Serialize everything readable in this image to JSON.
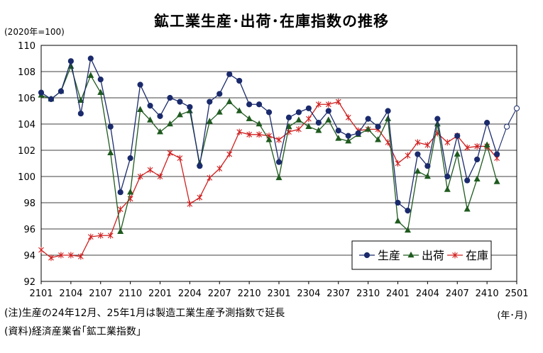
{
  "chart_data": {
    "type": "line",
    "title": "鉱工業生産･出荷･在庫指数の推移",
    "unit": "(2020年=100)",
    "x_unit": "(年･月)",
    "ylim": [
      92,
      110
    ],
    "y_ticks": [
      92,
      94,
      96,
      98,
      100,
      102,
      104,
      106,
      108,
      110
    ],
    "x_tick_labels": [
      "2101",
      "2104",
      "2107",
      "2110",
      "2201",
      "2204",
      "2207",
      "2210",
      "2301",
      "2304",
      "2307",
      "2310",
      "2401",
      "2404",
      "2407",
      "2410",
      "2501"
    ],
    "months": [
      "2101",
      "2102",
      "2103",
      "2104",
      "2105",
      "2106",
      "2107",
      "2108",
      "2109",
      "2110",
      "2111",
      "2112",
      "2201",
      "2202",
      "2203",
      "2204",
      "2205",
      "2206",
      "2207",
      "2208",
      "2209",
      "2210",
      "2211",
      "2212",
      "2301",
      "2302",
      "2303",
      "2304",
      "2305",
      "2306",
      "2307",
      "2308",
      "2309",
      "2310",
      "2311",
      "2312",
      "2401",
      "2402",
      "2403",
      "2404",
      "2405",
      "2406",
      "2407",
      "2408",
      "2409",
      "2410",
      "2411",
      "2412",
      "2501"
    ],
    "grid": "horizontal",
    "legend_position": "bottom-right",
    "series": [
      {
        "name": "生産",
        "color": "#1a2a6c",
        "marker": "circle",
        "values": [
          106.4,
          105.9,
          106.5,
          108.8,
          104.8,
          109.0,
          107.4,
          103.8,
          98.8,
          101.4,
          107.0,
          105.4,
          104.6,
          106.0,
          105.7,
          105.3,
          100.8,
          105.7,
          106.3,
          107.8,
          107.3,
          105.5,
          105.5,
          104.9,
          101.1,
          104.5,
          104.9,
          105.2,
          104.1,
          105.0,
          103.5,
          103.1,
          103.3,
          104.4,
          103.8,
          105.0,
          98.0,
          97.4,
          101.7,
          100.8,
          104.4,
          100.0,
          103.1,
          99.7,
          101.3,
          104.1,
          101.7,
          103.8,
          105.2
        ],
        "forecast_from_index": 47
      },
      {
        "name": "出荷",
        "color": "#1f5a1f",
        "marker": "triangle",
        "values": [
          106.2,
          105.9,
          106.5,
          108.4,
          105.8,
          107.7,
          106.4,
          101.8,
          95.8,
          98.8,
          105.1,
          104.3,
          103.4,
          104.0,
          104.7,
          105.0,
          101.0,
          104.2,
          104.9,
          105.7,
          105.0,
          104.4,
          104.0,
          102.8,
          99.9,
          103.8,
          104.3,
          103.8,
          103.5,
          104.3,
          102.9,
          102.7,
          103.2,
          103.6,
          102.8,
          104.4,
          96.6,
          95.9,
          100.4,
          100.0,
          104.0,
          99.0,
          101.7,
          97.5,
          99.8,
          102.4,
          99.6,
          null,
          null
        ]
      },
      {
        "name": "在庫",
        "color": "#d02020",
        "marker": "asterisk",
        "values": [
          94.4,
          93.8,
          94.0,
          94.0,
          93.9,
          95.4,
          95.5,
          95.5,
          97.5,
          98.3,
          100.0,
          100.5,
          100.0,
          101.8,
          101.4,
          97.9,
          98.4,
          99.9,
          100.6,
          101.7,
          103.4,
          103.2,
          103.2,
          103.1,
          102.8,
          103.4,
          103.6,
          104.4,
          105.5,
          105.5,
          105.7,
          104.5,
          103.5,
          103.6,
          103.6,
          102.6,
          101.0,
          101.6,
          102.6,
          102.4,
          103.3,
          102.6,
          103.1,
          102.2,
          102.3,
          102.3,
          101.4,
          null,
          null
        ]
      }
    ]
  },
  "notes": {
    "note": "(注)生産の24年12月、25年1月は製造工業生産予測指数で延長",
    "source": "(資料)経済産業省｢鉱工業指数｣"
  }
}
